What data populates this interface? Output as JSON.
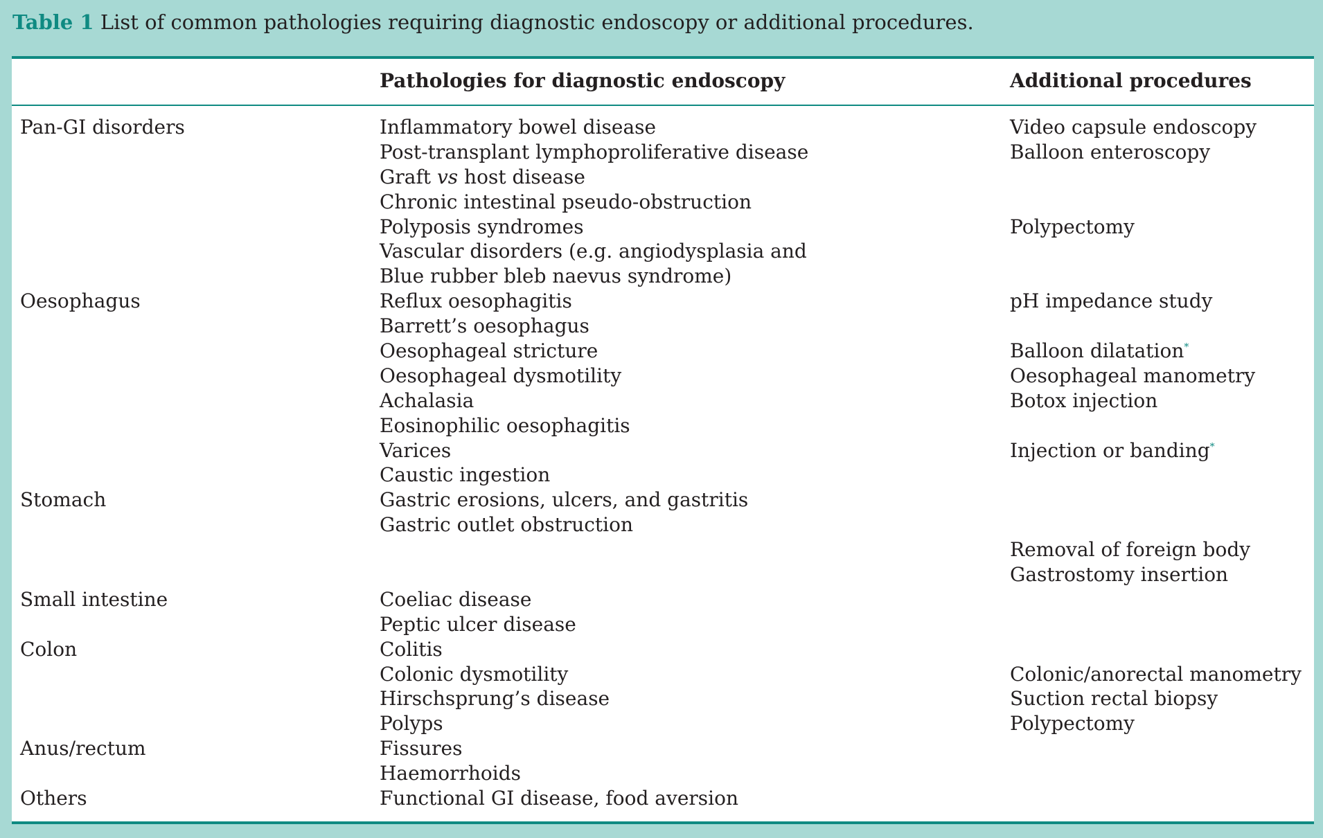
{
  "caption": {
    "label": "Table 1",
    "text": "List of common pathologies requiring diagnostic endoscopy or additional procedures."
  },
  "table": {
    "headers": [
      "",
      "Pathologies for diagnostic endoscopy",
      "Additional procedures"
    ],
    "rows": [
      [
        "Pan-GI disorders",
        "Inflammatory bowel disease",
        "Video capsule endoscopy"
      ],
      [
        "",
        "Post-transplant lymphoproliferative disease",
        "Balloon enteroscopy"
      ],
      [
        "",
        "Graft vs host disease",
        ""
      ],
      [
        "",
        "Chronic intestinal pseudo-obstruction",
        ""
      ],
      [
        "",
        "Polyposis syndromes",
        "Polypectomy"
      ],
      [
        "",
        "Vascular disorders (e.g. angiodysplasia and",
        ""
      ],
      [
        "",
        "Blue rubber bleb naevus syndrome)",
        ""
      ],
      [
        "Oesophagus",
        "Reflux oesophagitis",
        "pH impedance study"
      ],
      [
        "",
        "Barrett’s oesophagus",
        ""
      ],
      [
        "",
        "Oesophageal stricture",
        "Balloon dilatation"
      ],
      [
        "",
        "Oesophageal dysmotility",
        "Oesophageal manometry"
      ],
      [
        "",
        "Achalasia",
        "Botox injection"
      ],
      [
        "",
        "Eosinophilic oesophagitis",
        ""
      ],
      [
        "",
        "Varices",
        "Injection or banding"
      ],
      [
        "",
        "Caustic ingestion",
        ""
      ],
      [
        "Stomach",
        "Gastric erosions, ulcers, and gastritis",
        ""
      ],
      [
        "",
        "Gastric outlet obstruction",
        ""
      ],
      [
        "",
        "",
        "Removal of foreign body"
      ],
      [
        "",
        "",
        "Gastrostomy insertion"
      ],
      [
        "Small intestine",
        "Coeliac disease",
        ""
      ],
      [
        "",
        "Peptic ulcer disease",
        ""
      ],
      [
        "Colon",
        "Colitis",
        ""
      ],
      [
        "",
        "Colonic dysmotility",
        "Colonic/anorectal manometry"
      ],
      [
        "",
        "Hirschsprung’s disease",
        "Suction rectal biopsy"
      ],
      [
        "",
        "Polyps",
        "Polypectomy"
      ],
      [
        "Anus/rectum",
        "Fissures",
        ""
      ],
      [
        "",
        "Haemorrhoids",
        ""
      ],
      [
        "Others",
        "Functional GI disease, food aversion",
        ""
      ]
    ],
    "footnote_marker": "*",
    "marked_rows": [
      9,
      13
    ]
  }
}
